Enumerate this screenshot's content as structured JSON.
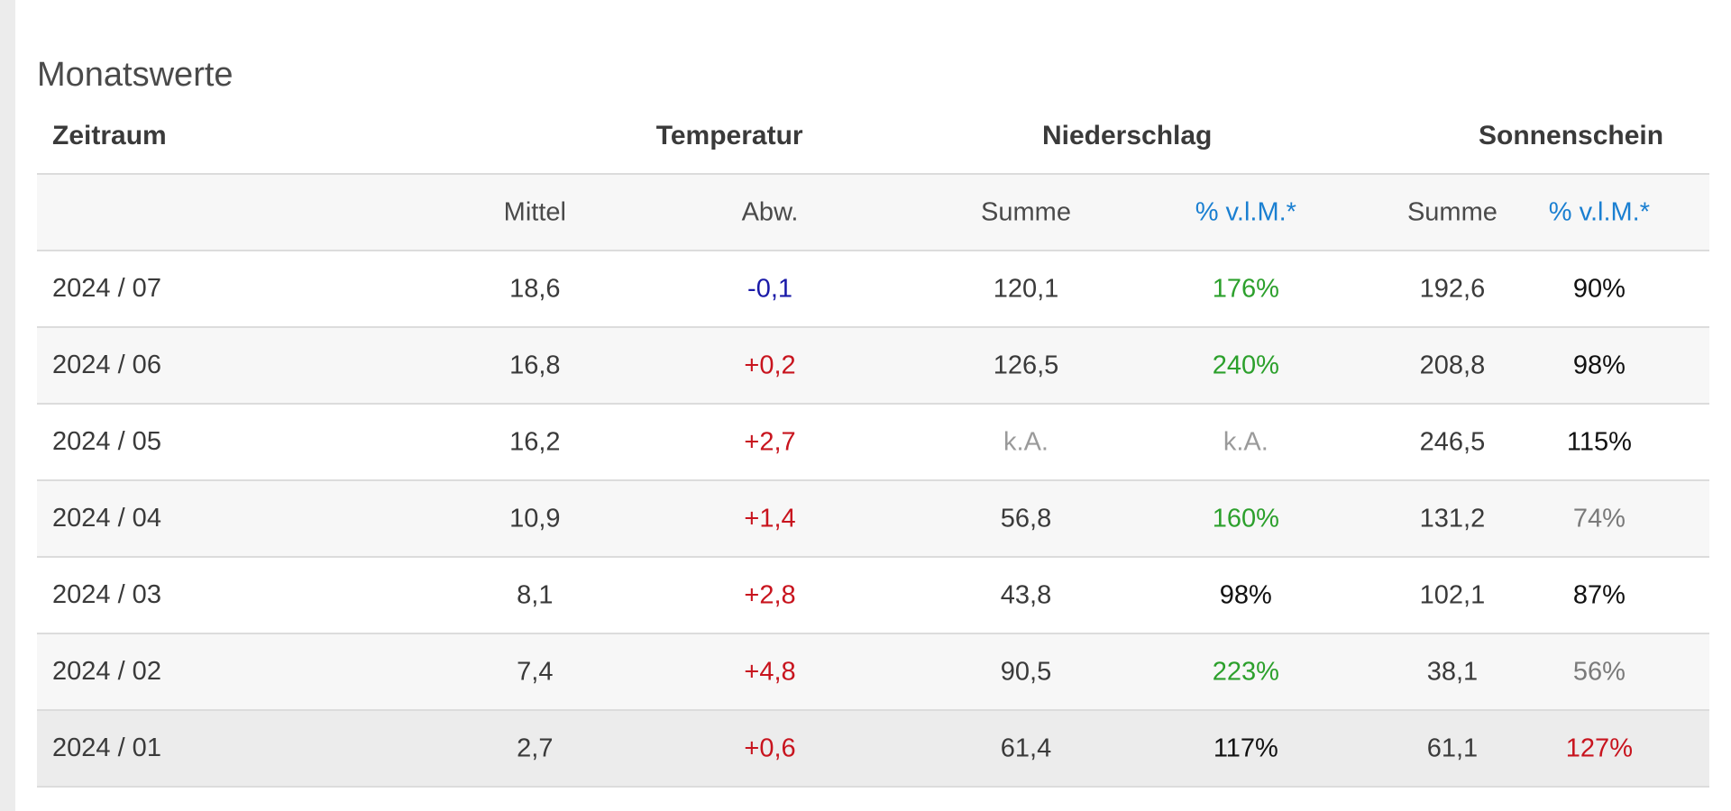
{
  "title": "Monatswerte",
  "headers": {
    "zeitraum": "Zeitraum",
    "temperatur": "Temperatur",
    "niederschlag": "Niederschlag",
    "sonnenschein": "Sonnenschein"
  },
  "subheaders": {
    "mittel": "Mittel",
    "abw": "Abw.",
    "ns_summe": "Summe",
    "ns_pct": "% v.l.M.*",
    "ss_summe": "Summe",
    "ss_pct": "% v.l.M.*"
  },
  "colors": {
    "link_blue": "#1a7fd1",
    "negative_blue": "#1a1aa8",
    "positive_red": "#c8141e",
    "green": "#2ca02c",
    "black": "#111111",
    "gray": "#7a7a7a",
    "light_gray": "#9a9a9a"
  },
  "rows": [
    {
      "period": "2024 / 07",
      "mittel": "18,6",
      "abw": "-0,1",
      "abw_color": "blue",
      "ns_summe": "120,1",
      "ns_summe_color": "num",
      "ns_pct": "176%",
      "ns_pct_color": "green",
      "ss_summe": "192,6",
      "ss_pct": "90%",
      "ss_pct_color": "black"
    },
    {
      "period": "2024 / 06",
      "mittel": "16,8",
      "abw": "+0,2",
      "abw_color": "red",
      "ns_summe": "126,5",
      "ns_summe_color": "num",
      "ns_pct": "240%",
      "ns_pct_color": "green",
      "ss_summe": "208,8",
      "ss_pct": "98%",
      "ss_pct_color": "black"
    },
    {
      "period": "2024 / 05",
      "mittel": "16,2",
      "abw": "+2,7",
      "abw_color": "red",
      "ns_summe": "k.A.",
      "ns_summe_color": "lightgray",
      "ns_pct": "k.A.",
      "ns_pct_color": "lightgray",
      "ss_summe": "246,5",
      "ss_pct": "115%",
      "ss_pct_color": "black"
    },
    {
      "period": "2024 / 04",
      "mittel": "10,9",
      "abw": "+1,4",
      "abw_color": "red",
      "ns_summe": "56,8",
      "ns_summe_color": "num",
      "ns_pct": "160%",
      "ns_pct_color": "green",
      "ss_summe": "131,2",
      "ss_pct": "74%",
      "ss_pct_color": "gray"
    },
    {
      "period": "2024 / 03",
      "mittel": "8,1",
      "abw": "+2,8",
      "abw_color": "red",
      "ns_summe": "43,8",
      "ns_summe_color": "num",
      "ns_pct": "98%",
      "ns_pct_color": "black",
      "ss_summe": "102,1",
      "ss_pct": "87%",
      "ss_pct_color": "black"
    },
    {
      "period": "2024 / 02",
      "mittel": "7,4",
      "abw": "+4,8",
      "abw_color": "red",
      "ns_summe": "90,5",
      "ns_summe_color": "num",
      "ns_pct": "223%",
      "ns_pct_color": "green",
      "ss_summe": "38,1",
      "ss_pct": "56%",
      "ss_pct_color": "gray"
    },
    {
      "period": "2024 / 01",
      "mittel": "2,7",
      "abw": "+0,6",
      "abw_color": "red",
      "ns_summe": "61,4",
      "ns_summe_color": "num",
      "ns_pct": "117%",
      "ns_pct_color": "black",
      "ss_summe": "61,1",
      "ss_pct": "127%",
      "ss_pct_color": "red"
    }
  ]
}
